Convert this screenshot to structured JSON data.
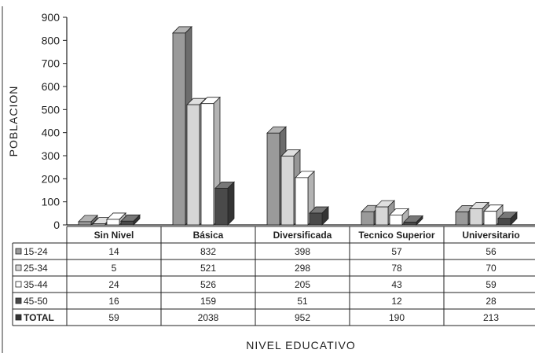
{
  "chart_data": {
    "type": "bar",
    "title": "",
    "xlabel": "NIVEL EDUCATIVO",
    "ylabel": "POBLACION",
    "ylim": [
      0,
      900
    ],
    "yticks": [
      "0",
      "100",
      "200",
      "300",
      "400",
      "500",
      "600",
      "700",
      "800",
      "900"
    ],
    "categories": [
      "Sin Nivel",
      "Básica",
      "Diversificada",
      "Tecnico Superior",
      "Universitario"
    ],
    "series": [
      {
        "name": "15-24",
        "values": [
          14,
          832,
          398,
          57,
          56
        ],
        "color": "#9a9a9a"
      },
      {
        "name": "25-34",
        "values": [
          5,
          521,
          298,
          78,
          70
        ],
        "color": "#d6d6d6"
      },
      {
        "name": "35-44",
        "values": [
          24,
          526,
          205,
          43,
          59
        ],
        "color": "#ffffff"
      },
      {
        "name": "45-50",
        "values": [
          16,
          159,
          51,
          12,
          28
        ],
        "color": "#4a4a4a"
      }
    ],
    "table": {
      "total_label": "TOTAL",
      "total_values": [
        "59",
        "2038",
        "952",
        "190",
        "213"
      ],
      "rows": [
        {
          "label": "15-24",
          "values": [
            "14",
            "832",
            "398",
            "57",
            "56"
          ]
        },
        {
          "label": "25-34",
          "values": [
            "5",
            "521",
            "298",
            "78",
            "70"
          ]
        },
        {
          "label": "35-44",
          "values": [
            "24",
            "526",
            "205",
            "43",
            "59"
          ]
        },
        {
          "label": "45-50",
          "values": [
            "16",
            "159",
            "51",
            "12",
            "28"
          ]
        }
      ]
    },
    "grid": false,
    "legend": "data-table"
  }
}
